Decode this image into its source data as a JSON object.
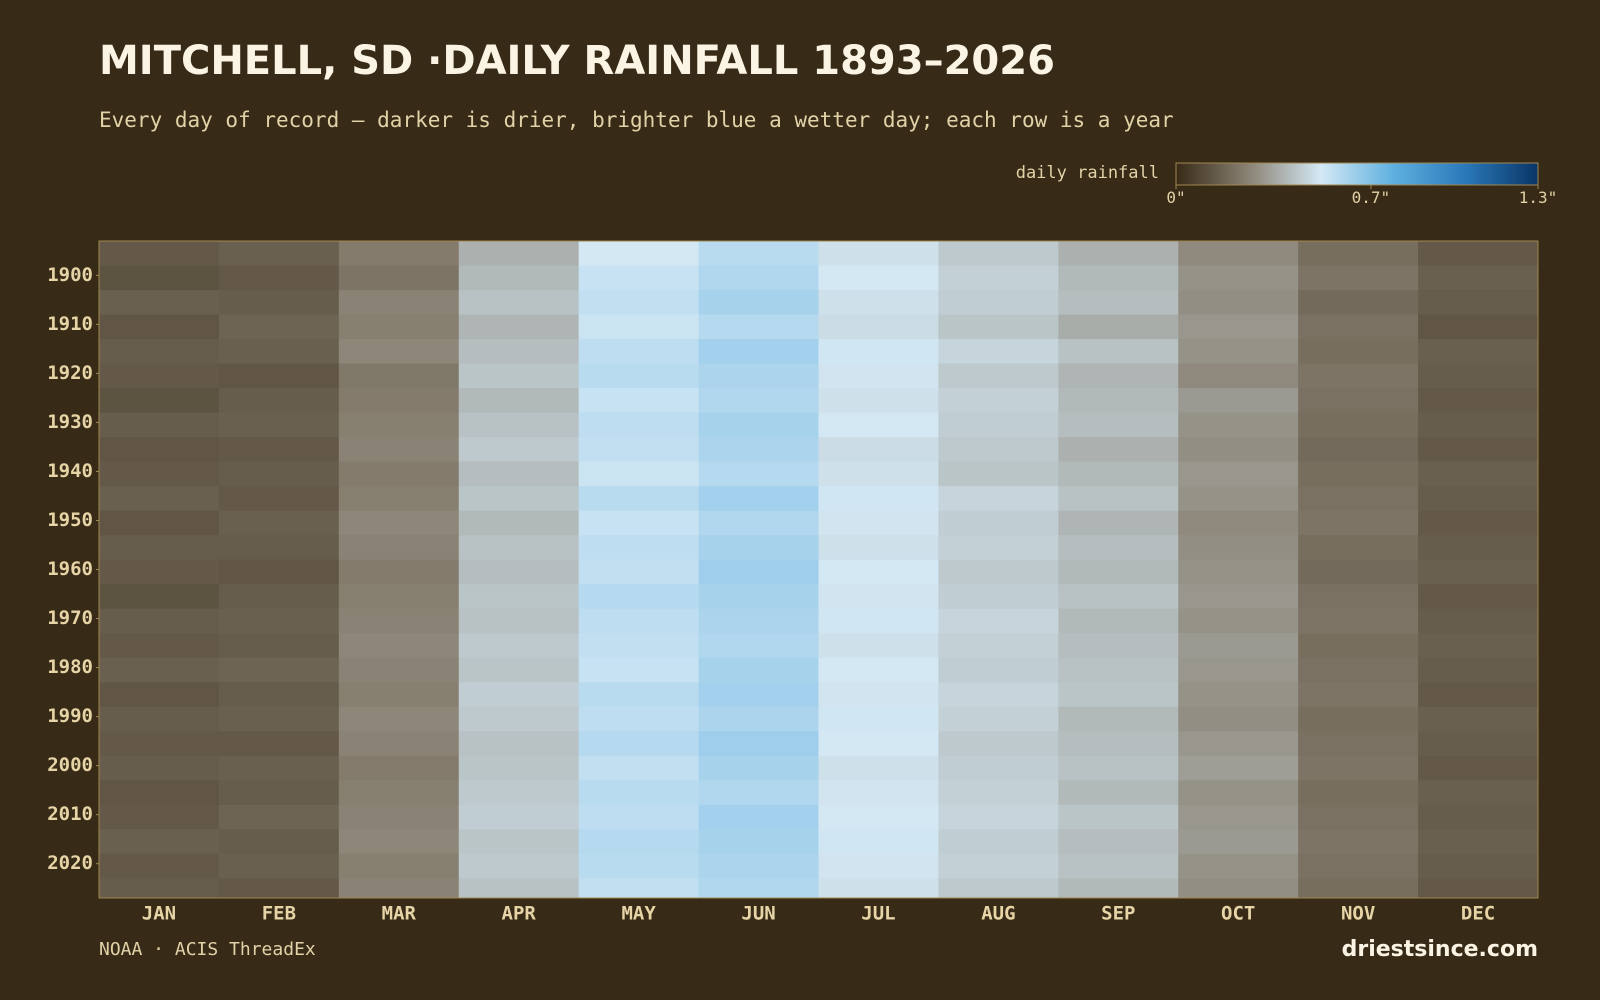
{
  "chart_data": {
    "type": "heatmap",
    "title": "MITCHELL, SD ·DAILY RAINFALL 1893–2026",
    "subtitle": "Every day of record — darker is drier, brighter blue a wetter day; each row is a year",
    "legend_title": "daily rainfall",
    "colors": [
      "#372a16",
      "#8a8274",
      "#d4e8f4",
      "#5fb0e0",
      "#2a78b8",
      "#0a3566"
    ],
    "clim": [
      0,
      1.3
    ],
    "cticks": [
      {
        "value": 0,
        "label": "0\""
      },
      {
        "value": 0.7,
        "label": "0.7\""
      },
      {
        "value": 1.3,
        "label": "1.3\""
      }
    ],
    "categories": [
      "JAN",
      "FEB",
      "MAR",
      "APR",
      "MAY",
      "JUN",
      "JUL",
      "AUG",
      "SEP",
      "OCT",
      "NOV",
      "DEC"
    ],
    "y": [
      1893,
      1898,
      1903,
      1908,
      1913,
      1918,
      1923,
      1928,
      1933,
      1938,
      1943,
      1948,
      1953,
      1958,
      1963,
      1968,
      1973,
      1978,
      1983,
      1988,
      1993,
      1998,
      2003,
      2008,
      2013,
      2018,
      2023
    ],
    "ylim": [
      1893,
      2027
    ],
    "yticks": [
      1900,
      1910,
      1920,
      1930,
      1940,
      1950,
      1960,
      1970,
      1980,
      1990,
      2000,
      2010,
      2020
    ],
    "values": [
      [
        0.14,
        0.16,
        0.24,
        0.38,
        0.52,
        0.58,
        0.5,
        0.44,
        0.38,
        0.28,
        0.2,
        0.14
      ],
      [
        0.12,
        0.14,
        0.22,
        0.4,
        0.55,
        0.6,
        0.52,
        0.46,
        0.4,
        0.3,
        0.22,
        0.16
      ],
      [
        0.16,
        0.15,
        0.26,
        0.42,
        0.56,
        0.62,
        0.5,
        0.45,
        0.41,
        0.29,
        0.19,
        0.15
      ],
      [
        0.13,
        0.17,
        0.25,
        0.39,
        0.54,
        0.59,
        0.49,
        0.43,
        0.37,
        0.31,
        0.21,
        0.13
      ],
      [
        0.15,
        0.16,
        0.27,
        0.41,
        0.57,
        0.63,
        0.53,
        0.47,
        0.42,
        0.3,
        0.2,
        0.16
      ],
      [
        0.14,
        0.13,
        0.23,
        0.43,
        0.58,
        0.61,
        0.51,
        0.44,
        0.39,
        0.28,
        0.22,
        0.15
      ],
      [
        0.12,
        0.15,
        0.24,
        0.4,
        0.55,
        0.6,
        0.5,
        0.46,
        0.4,
        0.32,
        0.21,
        0.14
      ],
      [
        0.15,
        0.16,
        0.25,
        0.42,
        0.57,
        0.62,
        0.52,
        0.45,
        0.41,
        0.3,
        0.2,
        0.15
      ],
      [
        0.13,
        0.14,
        0.26,
        0.44,
        0.56,
        0.61,
        0.49,
        0.44,
        0.38,
        0.29,
        0.19,
        0.14
      ],
      [
        0.14,
        0.15,
        0.24,
        0.41,
        0.54,
        0.59,
        0.5,
        0.43,
        0.4,
        0.31,
        0.2,
        0.16
      ],
      [
        0.16,
        0.14,
        0.25,
        0.43,
        0.58,
        0.63,
        0.53,
        0.47,
        0.42,
        0.3,
        0.21,
        0.15
      ],
      [
        0.13,
        0.16,
        0.27,
        0.4,
        0.55,
        0.6,
        0.51,
        0.45,
        0.39,
        0.28,
        0.22,
        0.14
      ],
      [
        0.15,
        0.15,
        0.26,
        0.42,
        0.57,
        0.62,
        0.5,
        0.46,
        0.41,
        0.29,
        0.2,
        0.15
      ],
      [
        0.14,
        0.13,
        0.24,
        0.41,
        0.56,
        0.64,
        0.52,
        0.44,
        0.4,
        0.3,
        0.19,
        0.16
      ],
      [
        0.12,
        0.15,
        0.25,
        0.43,
        0.59,
        0.62,
        0.51,
        0.45,
        0.42,
        0.31,
        0.21,
        0.14
      ],
      [
        0.15,
        0.16,
        0.26,
        0.42,
        0.57,
        0.61,
        0.53,
        0.47,
        0.4,
        0.3,
        0.22,
        0.15
      ],
      [
        0.14,
        0.15,
        0.27,
        0.44,
        0.56,
        0.6,
        0.5,
        0.46,
        0.41,
        0.32,
        0.2,
        0.16
      ],
      [
        0.16,
        0.17,
        0.26,
        0.43,
        0.55,
        0.62,
        0.52,
        0.45,
        0.42,
        0.31,
        0.21,
        0.15
      ],
      [
        0.13,
        0.15,
        0.25,
        0.45,
        0.58,
        0.63,
        0.51,
        0.47,
        0.43,
        0.3,
        0.22,
        0.14
      ],
      [
        0.15,
        0.16,
        0.27,
        0.44,
        0.57,
        0.61,
        0.53,
        0.46,
        0.4,
        0.29,
        0.2,
        0.16
      ],
      [
        0.14,
        0.14,
        0.26,
        0.42,
        0.59,
        0.64,
        0.52,
        0.44,
        0.41,
        0.31,
        0.21,
        0.15
      ],
      [
        0.15,
        0.16,
        0.24,
        0.43,
        0.56,
        0.62,
        0.5,
        0.45,
        0.42,
        0.33,
        0.22,
        0.14
      ],
      [
        0.13,
        0.15,
        0.25,
        0.44,
        0.58,
        0.6,
        0.51,
        0.46,
        0.4,
        0.3,
        0.2,
        0.16
      ],
      [
        0.14,
        0.17,
        0.26,
        0.45,
        0.57,
        0.63,
        0.52,
        0.47,
        0.43,
        0.31,
        0.21,
        0.15
      ],
      [
        0.16,
        0.15,
        0.27,
        0.43,
        0.59,
        0.62,
        0.53,
        0.45,
        0.41,
        0.32,
        0.22,
        0.16
      ],
      [
        0.14,
        0.16,
        0.25,
        0.44,
        0.58,
        0.61,
        0.51,
        0.46,
        0.42,
        0.3,
        0.21,
        0.15
      ],
      [
        0.15,
        0.14,
        0.26,
        0.42,
        0.56,
        0.6,
        0.5,
        0.44,
        0.4,
        0.29,
        0.2,
        0.14
      ]
    ],
    "source": "NOAA · ACIS ThreadEx",
    "credit": "driestsince.com"
  }
}
